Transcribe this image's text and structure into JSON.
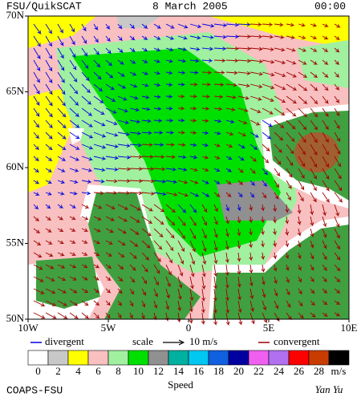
{
  "map": {
    "title": "FSU/QuikSCAT",
    "date": "8 March 2005",
    "time": "00:00",
    "lat_ticks": [
      {
        "value": 70,
        "label": "70N"
      },
      {
        "value": 65,
        "label": "65N"
      },
      {
        "value": 60,
        "label": "60N"
      },
      {
        "value": 55,
        "label": "55N"
      },
      {
        "value": 50,
        "label": "50N"
      }
    ],
    "lon_ticks": [
      {
        "value": -10,
        "label": "10W"
      },
      {
        "value": -5,
        "label": "5W"
      },
      {
        "value": 0,
        "label": "0"
      },
      {
        "value": 5,
        "label": "5E"
      },
      {
        "value": 10,
        "label": "10E"
      }
    ],
    "latlim": [
      50,
      70
    ],
    "lonlim": [
      -10,
      10
    ]
  },
  "legend": {
    "divergent": "divergent",
    "scale": "scale",
    "scale_value": "10 m/s",
    "convergent": "convergent",
    "divergent_color": "#0000e0",
    "convergent_color": "#a00000"
  },
  "colorbar": {
    "levels": [
      0,
      2,
      4,
      6,
      8,
      10,
      12,
      14,
      16,
      18,
      20,
      22,
      24,
      26,
      28
    ],
    "unit": "m/s",
    "label": "Speed",
    "colors": [
      "#ffffff",
      "#c8c8c8",
      "#ffff00",
      "#f8c0c0",
      "#a0f0a0",
      "#00e000",
      "#909090",
      "#00b0a0",
      "#00c8f0",
      "#1060e0",
      "#0000a0",
      "#f060f0",
      "#b070f0",
      "#ff0000",
      "#c83c00",
      "#000000"
    ]
  },
  "credits": {
    "left": "COAPS-FSU",
    "right": "Yan Yu"
  }
}
